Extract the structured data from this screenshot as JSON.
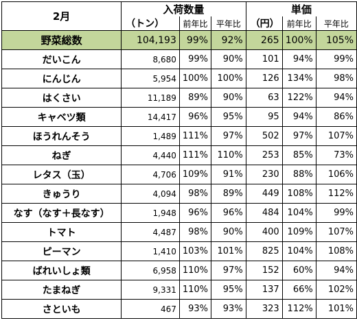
{
  "header": {
    "month": "2月",
    "arrival_group": "入荷数量",
    "price_group": "単価",
    "arrival_unit": "（トン）",
    "price_unit": "（円）",
    "prev_year": "前年比",
    "avg_year": "平年比"
  },
  "total": {
    "name": "野菜総数",
    "qty": "104,193",
    "qty_prev": "99%",
    "qty_avg": "92%",
    "price": "265",
    "price_prev": "100%",
    "price_avg": "105%"
  },
  "rows": [
    {
      "name": "だいこん",
      "qty": "8,680",
      "qty_prev": "99%",
      "qty_avg": "90%",
      "price": "101",
      "price_prev": "94%",
      "price_avg": "99%"
    },
    {
      "name": "にんじん",
      "qty": "5,954",
      "qty_prev": "100%",
      "qty_avg": "100%",
      "price": "126",
      "price_prev": "134%",
      "price_avg": "98%"
    },
    {
      "name": "はくさい",
      "qty": "11,189",
      "qty_prev": "89%",
      "qty_avg": "90%",
      "price": "63",
      "price_prev": "122%",
      "price_avg": "94%"
    },
    {
      "name": "キャベツ類",
      "qty": "14,417",
      "qty_prev": "96%",
      "qty_avg": "95%",
      "price": "95",
      "price_prev": "94%",
      "price_avg": "86%"
    },
    {
      "name": "ほうれんそう",
      "qty": "1,489",
      "qty_prev": "111%",
      "qty_avg": "97%",
      "price": "502",
      "price_prev": "97%",
      "price_avg": "107%"
    },
    {
      "name": "ねぎ",
      "qty": "4,440",
      "qty_prev": "111%",
      "qty_avg": "110%",
      "price": "253",
      "price_prev": "85%",
      "price_avg": "73%"
    },
    {
      "name": "レタス（玉）",
      "qty": "4,706",
      "qty_prev": "109%",
      "qty_avg": "91%",
      "price": "230",
      "price_prev": "88%",
      "price_avg": "106%"
    },
    {
      "name": "きゅうり",
      "qty": "4,094",
      "qty_prev": "98%",
      "qty_avg": "89%",
      "price": "449",
      "price_prev": "108%",
      "price_avg": "112%"
    },
    {
      "name": "なす（なす＋長なす）",
      "qty": "1,948",
      "qty_prev": "96%",
      "qty_avg": "96%",
      "price": "484",
      "price_prev": "104%",
      "price_avg": "99%"
    },
    {
      "name": "トマト",
      "qty": "4,487",
      "qty_prev": "98%",
      "qty_avg": "90%",
      "price": "400",
      "price_prev": "109%",
      "price_avg": "107%"
    },
    {
      "name": "ピーマン",
      "qty": "1,410",
      "qty_prev": "103%",
      "qty_avg": "101%",
      "price": "825",
      "price_prev": "104%",
      "price_avg": "108%"
    },
    {
      "name": "ばれいしょ類",
      "qty": "6,958",
      "qty_prev": "110%",
      "qty_avg": "97%",
      "price": "152",
      "price_prev": "60%",
      "price_avg": "94%"
    },
    {
      "name": "たまねぎ",
      "qty": "9,331",
      "qty_prev": "110%",
      "qty_avg": "95%",
      "price": "137",
      "price_prev": "66%",
      "price_avg": "102%"
    },
    {
      "name": "さといも",
      "qty": "467",
      "qty_prev": "93%",
      "qty_avg": "93%",
      "price": "323",
      "price_prev": "112%",
      "price_avg": "101%"
    }
  ]
}
